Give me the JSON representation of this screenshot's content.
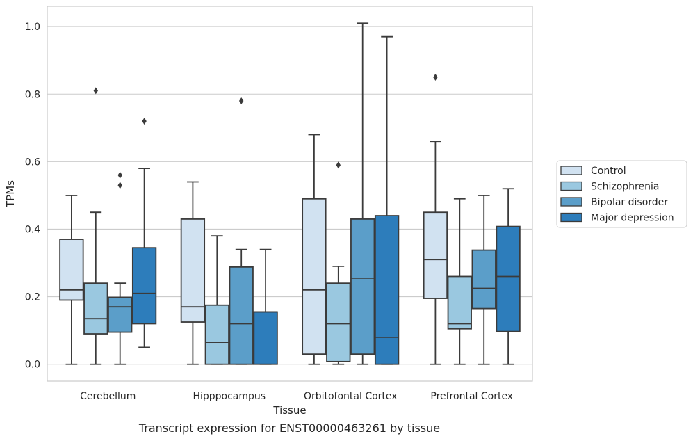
{
  "caption": "Transcript expression for ENST00000463261 by tissue",
  "chart_data": {
    "type": "box",
    "title": "",
    "xlabel": "Tissue",
    "ylabel": "TPMs",
    "ylim": [
      -0.05,
      1.06
    ],
    "yticks": [
      "0.0",
      "0.2",
      "0.4",
      "0.6",
      "0.8",
      "1.0"
    ],
    "grid": true,
    "legend_position": "right",
    "categories": [
      "Cerebellum",
      "Hipppocampus",
      "Orbitofontal Cortex",
      "Prefrontal Cortex"
    ],
    "series": [
      {
        "name": "Control",
        "color": "#d1e2f1",
        "boxes": [
          {
            "whislo": 0.0,
            "q1": 0.19,
            "med": 0.22,
            "q3": 0.37,
            "whishi": 0.5,
            "fliers": []
          },
          {
            "whislo": 0.0,
            "q1": 0.125,
            "med": 0.17,
            "q3": 0.43,
            "whishi": 0.54,
            "fliers": []
          },
          {
            "whislo": 0.0,
            "q1": 0.03,
            "med": 0.22,
            "q3": 0.49,
            "whishi": 0.68,
            "fliers": []
          },
          {
            "whislo": 0.0,
            "q1": 0.195,
            "med": 0.31,
            "q3": 0.45,
            "whishi": 0.66,
            "fliers": [
              0.85
            ]
          }
        ]
      },
      {
        "name": "Schizophrenia",
        "color": "#9ac8e0",
        "boxes": [
          {
            "whislo": 0.0,
            "q1": 0.09,
            "med": 0.135,
            "q3": 0.24,
            "whishi": 0.45,
            "fliers": [
              0.81
            ]
          },
          {
            "whislo": 0.0,
            "q1": 0.0,
            "med": 0.065,
            "q3": 0.175,
            "whishi": 0.38,
            "fliers": []
          },
          {
            "whislo": 0.0,
            "q1": 0.008,
            "med": 0.12,
            "q3": 0.24,
            "whishi": 0.29,
            "fliers": [
              0.59
            ]
          },
          {
            "whislo": 0.0,
            "q1": 0.105,
            "med": 0.12,
            "q3": 0.26,
            "whishi": 0.49,
            "fliers": []
          }
        ]
      },
      {
        "name": "Bipolar disorder",
        "color": "#5b9ec9",
        "boxes": [
          {
            "whislo": 0.0,
            "q1": 0.095,
            "med": 0.17,
            "q3": 0.198,
            "whishi": 0.24,
            "fliers": [
              0.53,
              0.56
            ]
          },
          {
            "whislo": 0.0,
            "q1": 0.0,
            "med": 0.12,
            "q3": 0.288,
            "whishi": 0.34,
            "fliers": [
              0.78
            ]
          },
          {
            "whislo": 0.0,
            "q1": 0.03,
            "med": 0.255,
            "q3": 0.43,
            "whishi": 1.01,
            "fliers": []
          },
          {
            "whislo": 0.0,
            "q1": 0.165,
            "med": 0.225,
            "q3": 0.338,
            "whishi": 0.5,
            "fliers": []
          }
        ]
      },
      {
        "name": "Major depression",
        "color": "#2d7dbb",
        "boxes": [
          {
            "whislo": 0.05,
            "q1": 0.12,
            "med": 0.21,
            "q3": 0.345,
            "whishi": 0.58,
            "fliers": [
              0.72
            ]
          },
          {
            "whislo": 0.0,
            "q1": 0.0,
            "med": 0.155,
            "q3": 0.155,
            "whishi": 0.34,
            "fliers": []
          },
          {
            "whislo": 0.0,
            "q1": 0.0,
            "med": 0.08,
            "q3": 0.44,
            "whishi": 0.97,
            "fliers": []
          },
          {
            "whislo": 0.0,
            "q1": 0.097,
            "med": 0.26,
            "q3": 0.408,
            "whishi": 0.52,
            "fliers": []
          }
        ]
      }
    ]
  }
}
